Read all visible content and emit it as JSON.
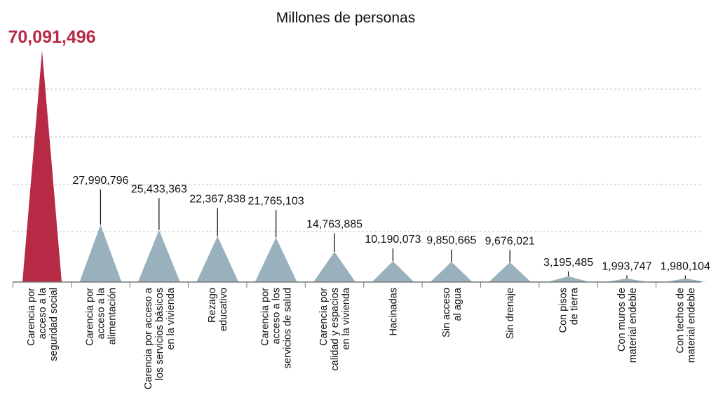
{
  "chart_data": {
    "type": "bar",
    "title": "Millones de personas",
    "xlabel": "",
    "ylabel": "",
    "ylim": [
      0,
      70091496
    ],
    "grid": true,
    "categories": [
      "Carencia por acceso a la seguridad social",
      "Carencia por acceso a la alimentación",
      "Carencia por acceso a los servicios básicos en la vivienda",
      "Rezago educativo",
      "Carencia por acceso a los servicios de salud",
      "Carencia por calidad y espacios en la vivienda",
      "Hacinadas",
      "Sin acceso al agua",
      "Sin drenaje",
      "Con pisos de tierra",
      "Con muros de material endeble",
      "Con techos de material endeble"
    ],
    "category_lines": [
      [
        "Carencia por",
        "acceso a la",
        "seguridad social"
      ],
      [
        "Carencia por",
        "acceso a la",
        "alimentación"
      ],
      [
        "Carencia por acceso a",
        "los servicios básicos",
        "en la vivienda"
      ],
      [
        "Rezago",
        "educativo"
      ],
      [
        "Carencia por",
        "acceso a los",
        "servicios de salud"
      ],
      [
        "Carencia por",
        "calidad y espacios",
        "en la vivienda"
      ],
      [
        "Hacinadas"
      ],
      [
        "Sin acceso",
        "al agua"
      ],
      [
        "Sin drenaje"
      ],
      [
        "Con pisos",
        "de tierra"
      ],
      [
        "Con muros de",
        "material endeble"
      ],
      [
        "Con techos de",
        "material endeble"
      ]
    ],
    "values": [
      70091496,
      27990796,
      25433363,
      22367838,
      21765103,
      14763885,
      10190073,
      9850665,
      9676021,
      3195485,
      1993747,
      1980104
    ],
    "labels": [
      "70,091,496",
      "27,990,796",
      "25,433,363",
      "22,367,838",
      "21,765,103",
      "14,763,885",
      "10,190,073",
      "9,850,665",
      "9,676,021",
      "3,195,485",
      "1,993,747",
      "1,980,104"
    ],
    "highlight_index": 0,
    "colors": {
      "highlight": "#b72a45",
      "bar": "#98b1bd",
      "leader": "#111111",
      "axis": "#7a7a7a",
      "grid": "#bdbdbd",
      "text": "#111111"
    }
  }
}
